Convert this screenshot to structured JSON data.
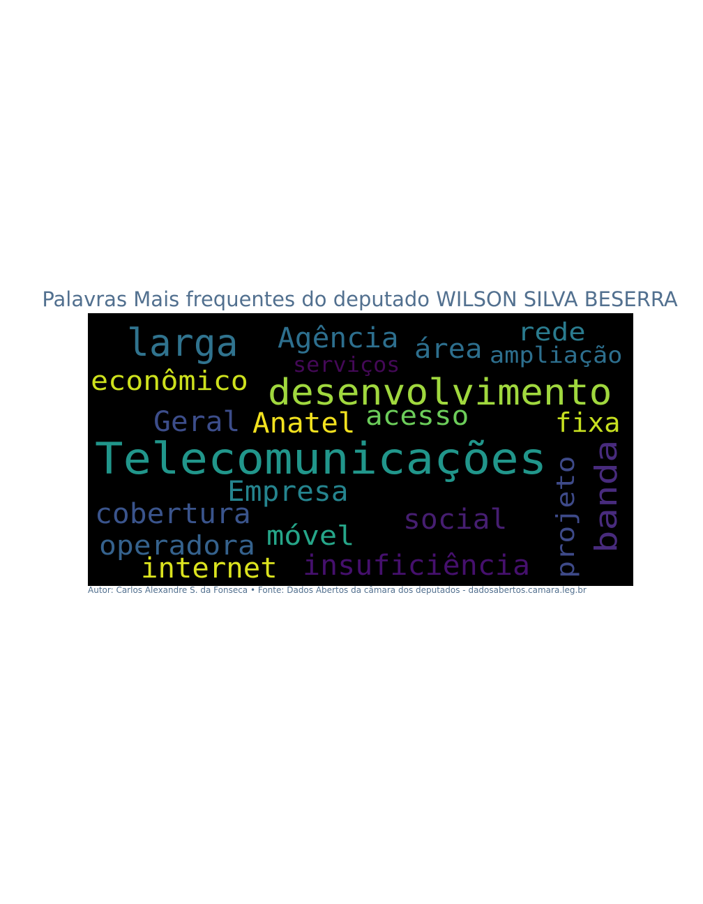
{
  "title": "Palavras Mais frequentes do deputado WILSON SILVA BESERRA",
  "caption": "Autor: Carlos Alexandre S. da Fonseca • Fonte: Dados Abertos da câmara dos deputados - dadosabertos.camara.leg.br",
  "wordcloud": {
    "background": "#000000",
    "colormap": "viridis",
    "words": [
      {
        "text": "Telecomunicações",
        "color": "#21968b"
      },
      {
        "text": "desenvolvimento",
        "color": "#a0d83e"
      },
      {
        "text": "banda",
        "color": "#482b7d"
      },
      {
        "text": "larga",
        "color": "#30738e"
      },
      {
        "text": "Anatel",
        "color": "#f2e11f"
      },
      {
        "text": "internet",
        "color": "#dbe31f"
      },
      {
        "text": "econômico",
        "color": "#cde11d"
      },
      {
        "text": "fixa",
        "color": "#c7e020"
      },
      {
        "text": "insuficiência",
        "color": "#45106d"
      },
      {
        "text": "projeto",
        "color": "#3e4a89"
      },
      {
        "text": "Empresa",
        "color": "#25848e"
      },
      {
        "text": "cobertura",
        "color": "#3a548c"
      },
      {
        "text": "operadora",
        "color": "#35628d"
      },
      {
        "text": "social",
        "color": "#461e71"
      },
      {
        "text": "Agência",
        "color": "#2d6f8e"
      },
      {
        "text": "área",
        "color": "#2d6f8e"
      },
      {
        "text": "rede",
        "color": "#2a7b8e"
      },
      {
        "text": "ampliação",
        "color": "#2d6f8e"
      },
      {
        "text": "acesso",
        "color": "#6ccd5a"
      },
      {
        "text": "Geral",
        "color": "#3c4d8a"
      },
      {
        "text": "móvel",
        "color": "#26a689"
      },
      {
        "text": "serviços",
        "color": "#440957"
      }
    ]
  }
}
